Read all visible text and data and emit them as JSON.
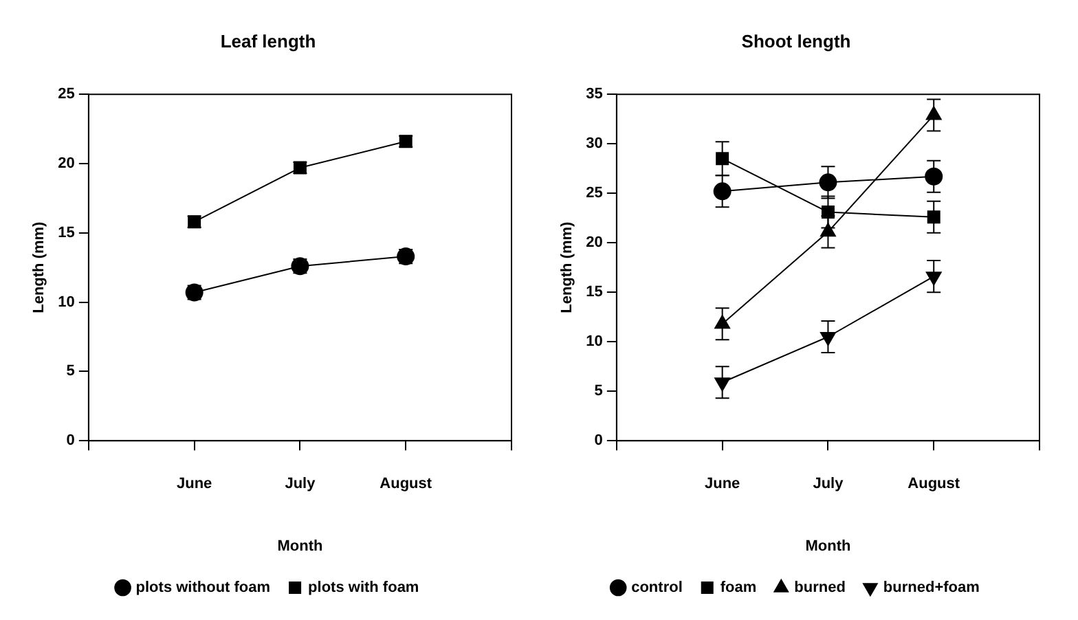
{
  "chart_data": [
    {
      "type": "line",
      "title": "Leaf length",
      "xlabel": "Month",
      "ylabel": "Length (mm)",
      "categories": [
        null,
        "June",
        "July",
        "August",
        null
      ],
      "ylim": [
        0,
        25
      ],
      "yticks": [
        0,
        5,
        10,
        15,
        20,
        25
      ],
      "grid": false,
      "legend": "bottom",
      "line_style": "solid",
      "series": [
        {
          "name": "plots without foam",
          "color": "#000000",
          "marker": "circle",
          "values": [
            null,
            10.7,
            12.6,
            13.3,
            null
          ],
          "errors": [
            null,
            0.5,
            0.5,
            0.5,
            null
          ]
        },
        {
          "name": "plots with foam",
          "color": "#000000",
          "marker": "square",
          "values": [
            null,
            15.8,
            19.7,
            21.6,
            null
          ],
          "errors": [
            null,
            0.4,
            0.4,
            0.4,
            null
          ]
        }
      ]
    },
    {
      "type": "line",
      "title": "Shoot length",
      "xlabel": "Month",
      "ylabel": "Length (mm)",
      "categories": [
        null,
        "June",
        "July",
        "August",
        null
      ],
      "ylim": [
        0,
        35
      ],
      "yticks": [
        0,
        5,
        10,
        15,
        20,
        25,
        30,
        35
      ],
      "grid": false,
      "legend": "bottom",
      "line_style": "solid",
      "series": [
        {
          "name": "control",
          "color": "#000000",
          "marker": "circle",
          "values": [
            null,
            25.2,
            26.1,
            26.7,
            null
          ],
          "errors": [
            null,
            1.6,
            1.6,
            1.6,
            null
          ]
        },
        {
          "name": "foam",
          "color": "#000000",
          "marker": "square",
          "values": [
            null,
            28.5,
            23.1,
            22.6,
            null
          ],
          "errors": [
            null,
            1.7,
            1.6,
            1.6,
            null
          ]
        },
        {
          "name": "burned",
          "color": "#000000",
          "marker": "triangle",
          "values": [
            null,
            11.8,
            21.1,
            32.9,
            null
          ],
          "errors": [
            null,
            1.6,
            1.6,
            1.6,
            null
          ]
        },
        {
          "name": "burned+foam",
          "color": "#000000",
          "marker": "triangle-down",
          "values": [
            null,
            5.9,
            10.5,
            16.6,
            null
          ],
          "errors": [
            null,
            1.6,
            1.6,
            1.6,
            null
          ]
        }
      ]
    }
  ]
}
